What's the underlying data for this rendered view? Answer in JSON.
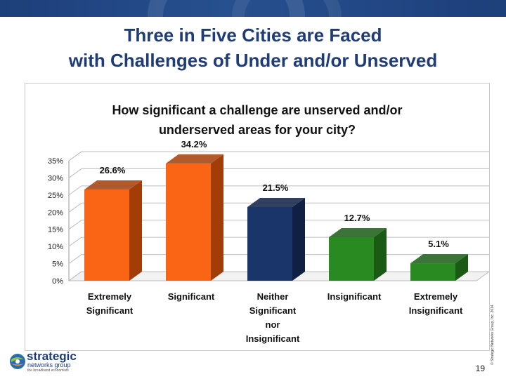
{
  "slide": {
    "title_line1": "Three in Five Cities are Faced",
    "title_line2": "with Challenges of Under and/or Unserved",
    "page_number": "19",
    "copyright": "© Strategic Networks Group, Inc. 2014"
  },
  "logo": {
    "word1": "strategic",
    "word2": "networks group",
    "tagline": "the broadband economists"
  },
  "colors": {
    "orange": "#fa6415",
    "orange_dark": "#a33d08",
    "navy": "#1a3569",
    "navy_dark": "#0f2044",
    "green": "#2a8a22",
    "green_dark": "#1a5a15",
    "title_blue": "#1f3c76"
  },
  "chart_data": {
    "type": "bar",
    "title": "How significant a challenge are unserved and/or underserved areas for your city?",
    "title_lines": [
      "How significant a challenge are unserved and/or",
      "underserved areas for your city?"
    ],
    "categories": [
      [
        "Extremely",
        "Significant"
      ],
      [
        "Significant"
      ],
      [
        "Neither",
        "Significant",
        "nor",
        "Insignificant"
      ],
      [
        "Insignificant"
      ],
      [
        "Extremely",
        "Insignificant"
      ]
    ],
    "values": [
      26.6,
      34.2,
      21.5,
      12.7,
      5.1
    ],
    "value_labels": [
      "26.6%",
      "34.2%",
      "21.5%",
      "12.7%",
      "5.1%"
    ],
    "bar_colors": [
      "#fa6415",
      "#fa6415",
      "#1a3569",
      "#2a8a22",
      "#2a8a22"
    ],
    "bar_side_colors": [
      "#a33d08",
      "#a33d08",
      "#0f2044",
      "#1a5a15",
      "#1a5a15"
    ],
    "y_ticks": [
      "0%",
      "5%",
      "10%",
      "15%",
      "20%",
      "25%",
      "30%",
      "35%"
    ],
    "ylim": [
      0,
      35
    ],
    "grid": true,
    "legend": "none"
  }
}
